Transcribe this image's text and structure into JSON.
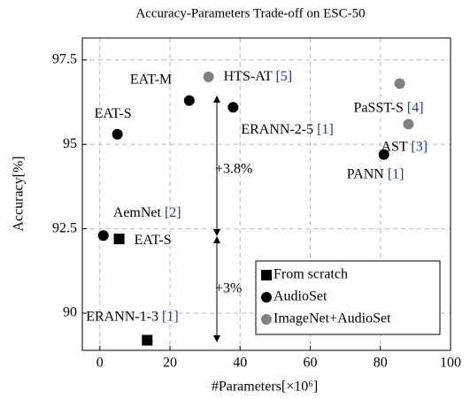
{
  "chart_data": {
    "type": "scatter",
    "title": "Accuracy-Parameters Trade-off on ESC-50",
    "x_label": "#Parameters[×10⁶]",
    "y_label": "Accuracy[%]",
    "xlim": [
      -5,
      100
    ],
    "xticks": [
      0,
      20,
      40,
      60,
      80,
      100
    ],
    "ylim": [
      88.9,
      98.15
    ],
    "yticks": [
      90,
      92.5,
      95,
      97.5
    ],
    "grid": true,
    "legend": "lower right",
    "series": [
      {
        "name": "From scratch",
        "color": "#000000",
        "marker": "square",
        "x": [
          5.5,
          13.5
        ],
        "values": [
          92.2,
          89.2
        ],
        "labels": [
          "EAT-S",
          "ERANN-1-3"
        ],
        "refs": [
          null,
          "[1]"
        ]
      },
      {
        "name": "AudioSet",
        "color": "#000000",
        "marker": "circle",
        "x": [
          1,
          5,
          25.5,
          38,
          81
        ],
        "values": [
          92.3,
          95.3,
          96.3,
          96.1,
          94.7
        ],
        "labels": [
          "AemNet",
          "EAT-S",
          "EAT-M",
          "ERANN-2-5",
          "PANN"
        ],
        "refs": [
          "[2]",
          null,
          null,
          "[1]",
          "[1]"
        ]
      },
      {
        "name": "ImageNet+AudioSet",
        "color": "#808080",
        "marker": "circle",
        "x": [
          31,
          85.5,
          88
        ],
        "values": [
          97,
          96.8,
          95.6
        ],
        "labels": [
          "HTS-AT",
          "PaSST-S",
          "AST"
        ],
        "refs": [
          "[5]",
          "[4]",
          "[3]"
        ]
      }
    ],
    "annotations": [
      "+3.8%",
      "+3%"
    ]
  }
}
